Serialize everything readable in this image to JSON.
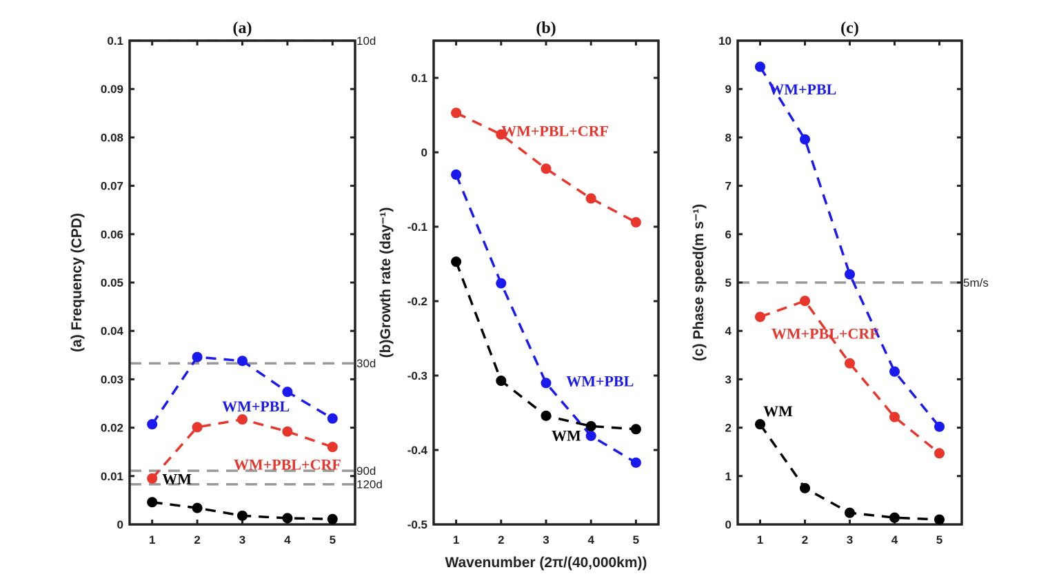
{
  "chart_data": [
    {
      "type": "line",
      "title": "(a)",
      "xlabel": "",
      "ylabel": "(a) Frequency (CPD)",
      "x": [
        1,
        2,
        3,
        4,
        5
      ],
      "xticks": [
        "1",
        "2",
        "3",
        "4",
        "5"
      ],
      "xlim": [
        0.5,
        5.5
      ],
      "ylim": [
        0,
        0.1
      ],
      "yticks": [
        "0",
        "0.01",
        "0.02",
        "0.03",
        "0.04",
        "0.05",
        "0.06",
        "0.07",
        "0.08",
        "0.09",
        "0.1"
      ],
      "series": [
        {
          "name": "WM+PBL",
          "color": "#1a1aee",
          "values": [
            0.0207,
            0.0346,
            0.0338,
            0.0274,
            0.0219
          ]
        },
        {
          "name": "WM+PBL+CRF",
          "color": "#e8362c",
          "values": [
            0.0095,
            0.0201,
            0.0217,
            0.0192,
            0.016
          ]
        },
        {
          "name": "WM",
          "color": "#000000",
          "values": [
            0.0046,
            0.0034,
            0.0018,
            0.0013,
            0.0011
          ]
        }
      ],
      "reference_lines": [
        {
          "y": 0.1,
          "label": "10d"
        },
        {
          "y": 0.0333,
          "label": "30d"
        },
        {
          "y": 0.0111,
          "label": "90d"
        },
        {
          "y": 0.0083,
          "label": "120d"
        }
      ],
      "annotations": [
        {
          "text": "WM+PBL",
          "series": "WM+PBL",
          "x": 3.3,
          "y": 0.0245
        },
        {
          "text": "WM+PBL+CRF",
          "series": "WM+PBL+CRF",
          "x": 4.0,
          "y": 0.0125
        },
        {
          "text": "WM",
          "series": "WM",
          "x": 1.55,
          "y": 0.0095
        }
      ]
    },
    {
      "type": "line",
      "title": "(b)",
      "xlabel": "Wavenumber (2π/(40,000km))",
      "ylabel": "(b)Growth rate (day⁻¹)",
      "x": [
        1,
        2,
        3,
        4,
        5
      ],
      "xticks": [
        "1",
        "2",
        "3",
        "4",
        "5"
      ],
      "xlim": [
        0.5,
        5.5
      ],
      "ylim": [
        -0.5,
        0.15
      ],
      "yticks": [
        "-0.5",
        "-0.4",
        "-0.3",
        "-0.2",
        "-0.1",
        "0",
        "0.1"
      ],
      "ytick_values": [
        -0.5,
        -0.4,
        -0.3,
        -0.2,
        -0.1,
        0,
        0.1
      ],
      "series": [
        {
          "name": "WM+PBL+CRF",
          "color": "#e8362c",
          "values": [
            0.053,
            0.024,
            -0.022,
            -0.062,
            -0.094
          ]
        },
        {
          "name": "WM+PBL",
          "color": "#1a1aee",
          "values": [
            -0.03,
            -0.176,
            -0.31,
            -0.381,
            -0.417
          ]
        },
        {
          "name": "WM",
          "color": "#000000",
          "values": [
            -0.147,
            -0.307,
            -0.354,
            -0.368,
            -0.372
          ]
        }
      ],
      "reference_lines": [],
      "annotations": [
        {
          "text": "WM+PBL+CRF",
          "series": "WM+PBL+CRF",
          "x": 3.2,
          "y": 0.029
        },
        {
          "text": "WM+PBL",
          "series": "WM+PBL",
          "x": 4.2,
          "y": -0.307
        },
        {
          "text": "WM",
          "series": "WM",
          "x": 3.45,
          "y": -0.38
        }
      ]
    },
    {
      "type": "line",
      "title": "(c)",
      "xlabel": "",
      "ylabel": "(c) Phase speed(m s⁻¹)",
      "x": [
        1,
        2,
        3,
        4,
        5
      ],
      "xticks": [
        "1",
        "2",
        "3",
        "4",
        "5"
      ],
      "xlim": [
        0.5,
        5.5
      ],
      "ylim": [
        0,
        10
      ],
      "yticks": [
        "0",
        "1",
        "2",
        "3",
        "4",
        "5",
        "6",
        "7",
        "8",
        "9",
        "10"
      ],
      "series": [
        {
          "name": "WM+PBL",
          "color": "#1a1aee",
          "values": [
            9.46,
            7.96,
            5.17,
            3.16,
            2.02
          ]
        },
        {
          "name": "WM+PBL+CRF",
          "color": "#e8362c",
          "values": [
            4.29,
            4.62,
            3.33,
            2.22,
            1.47
          ]
        },
        {
          "name": "WM",
          "color": "#000000",
          "values": [
            2.07,
            0.75,
            0.24,
            0.14,
            0.1
          ]
        }
      ],
      "reference_lines": [
        {
          "y": 5,
          "label": "5m/s"
        }
      ],
      "annotations": [
        {
          "text": "WM+PBL",
          "series": "WM+PBL",
          "x": 1.95,
          "y": 9.0
        },
        {
          "text": "WM+PBL+CRF",
          "series": "WM+PBL+CRF",
          "x": 2.45,
          "y": 3.95
        },
        {
          "text": "WM",
          "series": "WM",
          "x": 1.4,
          "y": 2.35
        }
      ]
    }
  ]
}
